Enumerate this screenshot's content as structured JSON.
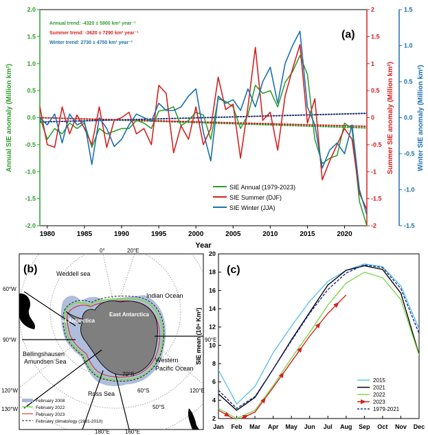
{
  "panel_a": {
    "label": "(a)",
    "trends": {
      "annual": "Annual trend: -4320 ± 5900 km² year⁻¹",
      "summer": "Summer trend: -3620 ± 7290 km² year⁻¹",
      "winter": "Winter trend: 2730 ± 4750 km² year⁻¹"
    }
  },
  "panel_b": {
    "label": "(b)",
    "regions": {
      "weddell": "Weddell sea",
      "indian": "Indian Ocean",
      "bellingshausen": "Bellingshausen",
      "amundsen": "Amundsen Sea",
      "ross": "Ross Sea",
      "west_ant": "West Antarctica",
      "east_ant": "East Antarctica",
      "west_pacific_1": "Western",
      "west_pacific_2": "Pacific Ocean"
    },
    "lon_labels": {
      "e0": "0°",
      "e20": "20°E",
      "w60": "60°W",
      "w90": "90°W",
      "e90": "90°E",
      "w120": "120°W",
      "e120": "120°E",
      "w130": "130°W",
      "e180": "180°E",
      "e160": "160°E"
    },
    "lat_labels": {
      "s70": "70°S",
      "s60": "60°S",
      "s50": "50°S"
    },
    "legend": [
      {
        "label": "February 2008",
        "color": "#a5b7d8"
      },
      {
        "label": "February 2022",
        "color": "#7cd84f"
      },
      {
        "label": "February 2023",
        "color": "#d23a3a"
      },
      {
        "label": "February climatology (1981-2010)",
        "color": "#111111"
      }
    ]
  },
  "chart_data": [
    {
      "type": "line",
      "title": "(a)",
      "xlabel": "Year",
      "ylabel": "Annual SIE anomaly (Million km²)",
      "ylabel_right1": "Summer SIE anomaly (Million km²)",
      "ylabel_right2": "Winter SIE anomaly (Million km²)",
      "xlim": [
        1979,
        2023
      ],
      "ylim": [
        -2.0,
        2.0
      ],
      "ylim_right1": [
        -2.0,
        2.0
      ],
      "ylim_right2": [
        -1.5,
        1.5
      ],
      "x_ticks": [
        1980,
        1985,
        1990,
        1995,
        2000,
        2005,
        2010,
        2015,
        2020
      ],
      "y_ticks": [
        "2.0",
        "1.5",
        "1.0",
        "0.5",
        "0.0",
        "-0.5",
        "-1.0",
        "-1.5",
        "-2.0"
      ],
      "y_ticks_right1": [
        "2",
        "1.5",
        "1",
        "0.5",
        "0",
        "-0.5",
        "-1",
        "-1.5",
        "-2"
      ],
      "y_ticks_right2": [
        "1.5",
        "1.0",
        "0.5",
        "0.0",
        "-0.5",
        "-1.0",
        "-1.5"
      ],
      "x": [
        1979,
        1980,
        1981,
        1982,
        1983,
        1984,
        1985,
        1986,
        1987,
        1988,
        1989,
        1990,
        1991,
        1992,
        1993,
        1994,
        1995,
        1996,
        1997,
        1998,
        1999,
        2000,
        2001,
        2002,
        2003,
        2004,
        2005,
        2006,
        2007,
        2008,
        2009,
        2010,
        2011,
        2012,
        2013,
        2014,
        2015,
        2016,
        2017,
        2018,
        2019,
        2020,
        2021,
        2022,
        2023
      ],
      "series": [
        {
          "name": "SIE Annual (1979-2023)",
          "color": "#2e9e2e",
          "axis": "left",
          "values": [
            0.0,
            -0.4,
            -0.2,
            -0.3,
            -0.1,
            -0.2,
            -0.1,
            -0.55,
            -0.2,
            -0.3,
            -0.25,
            -0.2,
            -0.2,
            -0.05,
            -0.1,
            -0.2,
            0.12,
            0.15,
            0.2,
            -0.15,
            -0.05,
            0.1,
            0.05,
            -0.4,
            0.35,
            0.3,
            0.2,
            -0.2,
            0.05,
            0.6,
            0.45,
            0.5,
            0.2,
            0.65,
            0.85,
            1.15,
            0.8,
            -0.4,
            -0.85,
            -0.75,
            -0.7,
            -0.1,
            -0.2,
            -1.55,
            -2.0
          ]
        },
        {
          "name": "SIE Summer (DJF)",
          "color": "#d42020",
          "axis": "right1",
          "values": [
            0.2,
            -0.5,
            -0.55,
            0.2,
            -0.3,
            0.05,
            -0.2,
            -0.5,
            0.2,
            -0.55,
            -0.05,
            0.0,
            0.1,
            -0.3,
            -0.2,
            -0.5,
            0.6,
            0.45,
            -0.65,
            -0.15,
            -0.4,
            0.2,
            -0.5,
            -0.2,
            0.75,
            0.15,
            0.25,
            -0.75,
            0.2,
            1.3,
            -0.05,
            0.1,
            -0.6,
            0.4,
            0.9,
            1.35,
            -0.1,
            0.35,
            -1.15,
            -0.8,
            -0.5,
            -0.2,
            -0.4,
            -1.4,
            -1.7
          ]
        },
        {
          "name": "SIE Winter (JJA)",
          "color": "#1b6fae",
          "axis": "right2",
          "values": [
            0.0,
            -0.1,
            0.05,
            -0.35,
            0.05,
            -0.1,
            -0.05,
            -0.65,
            0.0,
            -0.15,
            -0.4,
            -0.3,
            -0.1,
            0.05,
            0.0,
            -0.05,
            0.2,
            0.1,
            0.1,
            0.15,
            0.3,
            0.4,
            -0.2,
            -0.6,
            0.3,
            0.2,
            0.25,
            0.1,
            0.4,
            0.15,
            0.5,
            0.7,
            0.2,
            0.75,
            1.0,
            1.2,
            0.15,
            -0.1,
            -0.7,
            -0.45,
            -0.35,
            -0.5,
            -0.1,
            -1.0,
            -1.35
          ]
        }
      ],
      "trend_lines": [
        {
          "name": "Annual trend",
          "color": "#2e9e2e",
          "axis": "left",
          "from": [
            1979,
            0.0
          ],
          "to": [
            2023,
            -0.19
          ]
        },
        {
          "name": "Summer trend",
          "color": "#d42020",
          "axis": "right1",
          "from": [
            1979,
            0.0
          ],
          "to": [
            2023,
            -0.16
          ]
        },
        {
          "name": "Winter trend",
          "color": "#1b2f7a",
          "axis": "right2",
          "from": [
            1979,
            -0.06
          ],
          "to": [
            2023,
            0.06
          ]
        }
      ],
      "legend": [
        "SIE Annual (1979-2023)",
        "SIE Summer (DJF)",
        "SIE Winter (JJA)"
      ],
      "legend_position": "lower-right"
    },
    {
      "type": "line",
      "title": "(c)",
      "xlabel": "",
      "ylabel": "SIE mean (10⁶ Km²)",
      "categories": [
        "Jan",
        "Feb",
        "Mar",
        "Apr",
        "May",
        "Jun",
        "Jul",
        "Aug",
        "Sep",
        "Oct",
        "Nov",
        "Dec"
      ],
      "ylim": [
        2,
        20
      ],
      "y_ticks": [
        2,
        4,
        6,
        8,
        10,
        12,
        14,
        16,
        18,
        20
      ],
      "series": [
        {
          "name": "2015",
          "color": "#5ec3e8",
          "style": "solid",
          "values": [
            7.3,
            3.6,
            5.5,
            9.2,
            12.1,
            14.8,
            17.0,
            18.2,
            18.9,
            18.6,
            16.5,
            11.8
          ]
        },
        {
          "name": "2021",
          "color": "#000000",
          "style": "solid",
          "values": [
            4.7,
            2.9,
            4.3,
            7.4,
            10.6,
            13.6,
            16.6,
            18.2,
            18.7,
            18.3,
            15.7,
            9.0
          ]
        },
        {
          "name": "2022",
          "color": "#7cd84f",
          "style": "solid",
          "values": [
            3.1,
            2.0,
            2.9,
            5.6,
            8.6,
            11.4,
            14.4,
            16.8,
            18.0,
            17.4,
            15.0,
            8.9
          ]
        },
        {
          "name": "2023",
          "color": "#d42020",
          "style": "arrow",
          "values": [
            2.9,
            1.8,
            2.7,
            5.4,
            8.2,
            11.0,
            13.5,
            15.5,
            null,
            null,
            null,
            null
          ]
        },
        {
          "name": "1979-2021",
          "color": "#1a2a8c",
          "style": "dashed",
          "values": [
            5.1,
            3.1,
            4.4,
            7.4,
            10.5,
            13.5,
            16.1,
            17.9,
            18.8,
            18.5,
            16.2,
            11.3
          ]
        }
      ],
      "legend": [
        "2015",
        "2021",
        "2022",
        "2023",
        "1979-2021"
      ],
      "legend_position": "lower-right"
    }
  ]
}
